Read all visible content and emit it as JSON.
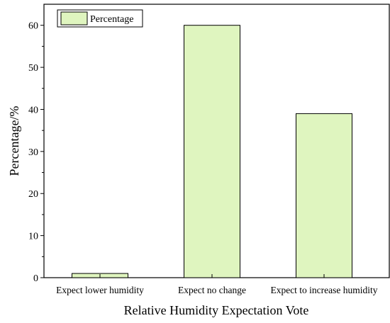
{
  "chart_data": {
    "type": "bar",
    "categories": [
      "Expect lower humidity",
      "Expect no change",
      "Expect to increase humidity"
    ],
    "series": [
      {
        "name": "Percentage",
        "values": [
          1,
          60,
          39
        ]
      }
    ],
    "title": "",
    "xlabel": "Relative Humidity Expectation Vote",
    "ylabel": "Percentage/%",
    "ylim": [
      0,
      65
    ],
    "yticks": [
      0,
      10,
      20,
      30,
      40,
      50,
      60
    ],
    "ytick_labels": [
      "0",
      "10",
      "20",
      "30",
      "40",
      "50",
      "60"
    ],
    "grid": false,
    "legend_position": "top-left",
    "colors": {
      "bar_fill": "#dff5bf",
      "bar_stroke": "#000000",
      "axis": "#000000",
      "legend_border": "#000000"
    }
  }
}
